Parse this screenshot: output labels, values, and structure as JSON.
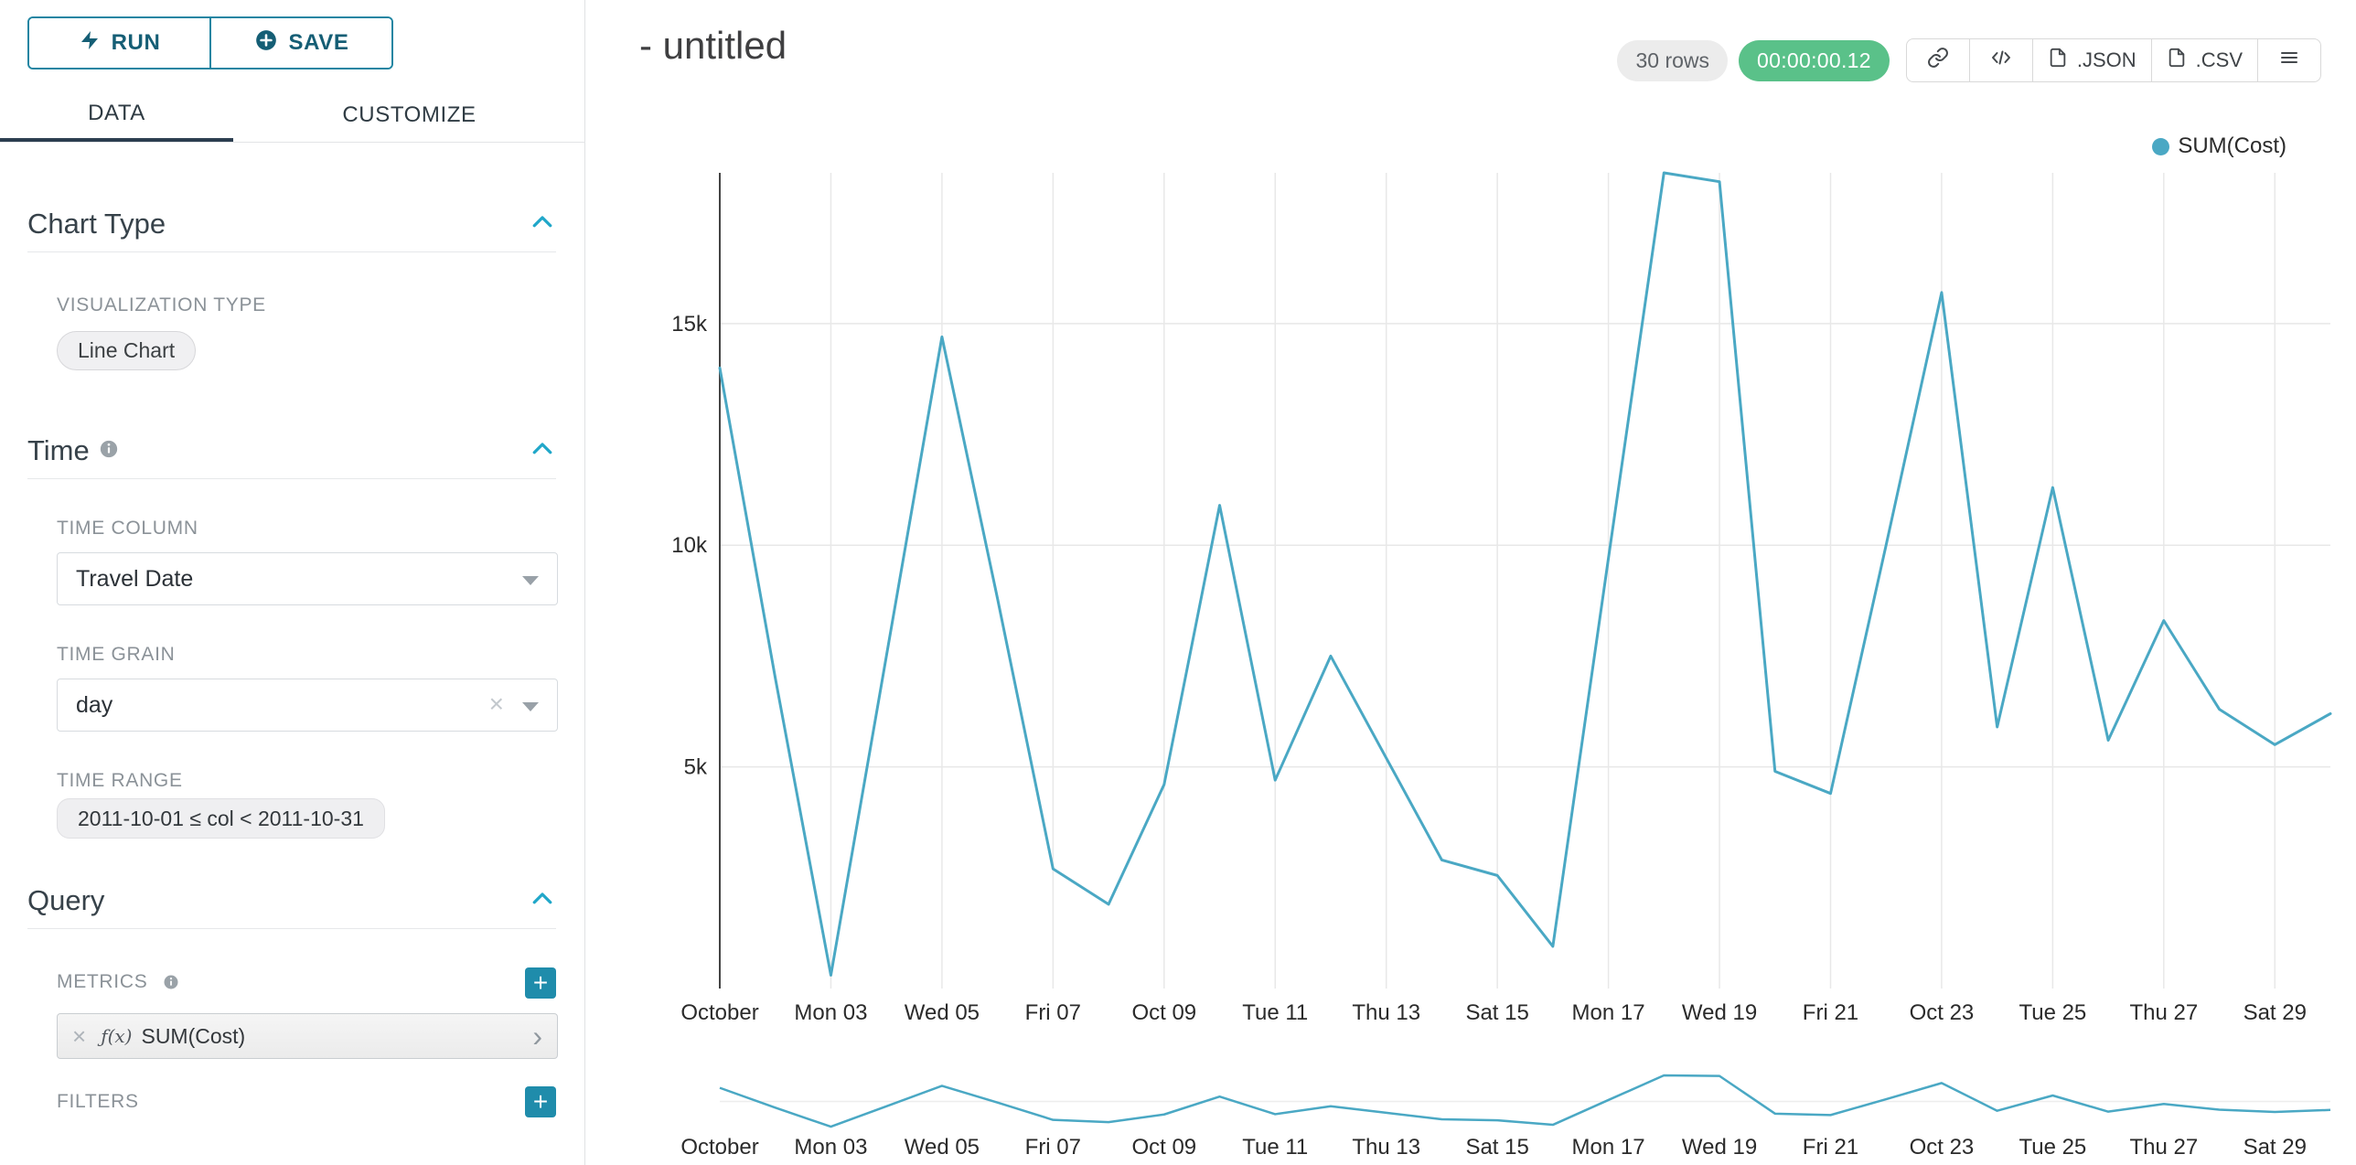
{
  "colors": {
    "accent_teal": "#1f85a2",
    "series_line": "#4aa8c4",
    "success": "#5ac189",
    "tab_underline": "#2c3e50"
  },
  "glyphs": {
    "clear": "×",
    "add": "+",
    "chevron_right": "›"
  },
  "sidebar": {
    "run_label": "RUN",
    "save_label": "SAVE",
    "tabs": [
      {
        "label": "DATA"
      },
      {
        "label": "CUSTOMIZE"
      }
    ],
    "chart_type": {
      "title": "Chart Type",
      "viz_type_label": "VISUALIZATION TYPE",
      "viz_type_value": "Line Chart"
    },
    "time": {
      "title": "Time",
      "time_column_label": "TIME COLUMN",
      "time_column_value": "Travel Date",
      "time_grain_label": "TIME GRAIN",
      "time_grain_value": "day",
      "time_range_label": "TIME RANGE",
      "time_range_value": "2011-10-01 ≤ col < 2011-10-31"
    },
    "query": {
      "title": "Query",
      "metrics_label": "METRICS",
      "metric_fx": "ƒ(x)",
      "metric_value": "SUM(Cost)",
      "filters_label": "FILTERS"
    }
  },
  "header": {
    "title": "- untitled",
    "rows_badge": "30 rows",
    "timer_badge": "00:00:00.12",
    "export_json_label": ".JSON",
    "export_csv_label": ".CSV"
  },
  "chart_data": {
    "type": "line",
    "title": "",
    "legend": [
      {
        "label": "SUM(Cost)",
        "color": "#4aa8c4"
      }
    ],
    "x": [
      "2011-10-01",
      "2011-10-02",
      "2011-10-03",
      "2011-10-04",
      "2011-10-05",
      "2011-10-06",
      "2011-10-07",
      "2011-10-08",
      "2011-10-09",
      "2011-10-10",
      "2011-10-11",
      "2011-10-12",
      "2011-10-13",
      "2011-10-14",
      "2011-10-15",
      "2011-10-16",
      "2011-10-17",
      "2011-10-18",
      "2011-10-19",
      "2011-10-20",
      "2011-10-21",
      "2011-10-22",
      "2011-10-23",
      "2011-10-24",
      "2011-10-25",
      "2011-10-26",
      "2011-10-27",
      "2011-10-28",
      "2011-10-29",
      "2011-10-30"
    ],
    "series": [
      {
        "name": "SUM(Cost)",
        "values": [
          14000,
          7000,
          300,
          7500,
          14700,
          8800,
          2700,
          1900,
          4600,
          10900,
          4700,
          7500,
          5200,
          2900,
          2550,
          950,
          9700,
          18400,
          18200,
          4900,
          4400,
          10000,
          15700,
          5900,
          11300,
          5600,
          8300,
          6300,
          5500,
          6200
        ]
      }
    ],
    "xlabel": "",
    "ylabel": "",
    "ylim": [
      0,
      18400
    ],
    "grid": true,
    "legend_position": "top-right",
    "x_tick_days": [
      1,
      3,
      5,
      7,
      9,
      11,
      13,
      15,
      17,
      19,
      21,
      23,
      25,
      27,
      29
    ],
    "x_tick_labels": [
      "October",
      "Mon 03",
      "Wed 05",
      "Fri 07",
      "Oct 09",
      "Tue 11",
      "Thu 13",
      "Sat 15",
      "Mon 17",
      "Wed 19",
      "Fri 21",
      "Oct 23",
      "Tue 25",
      "Thu 27",
      "Sat 29"
    ],
    "y_ticks": [
      {
        "value": 5000,
        "label": "5k"
      },
      {
        "value": 10000,
        "label": "10k"
      },
      {
        "value": 15000,
        "label": "15k"
      }
    ],
    "has_mini_context_chart": true
  }
}
